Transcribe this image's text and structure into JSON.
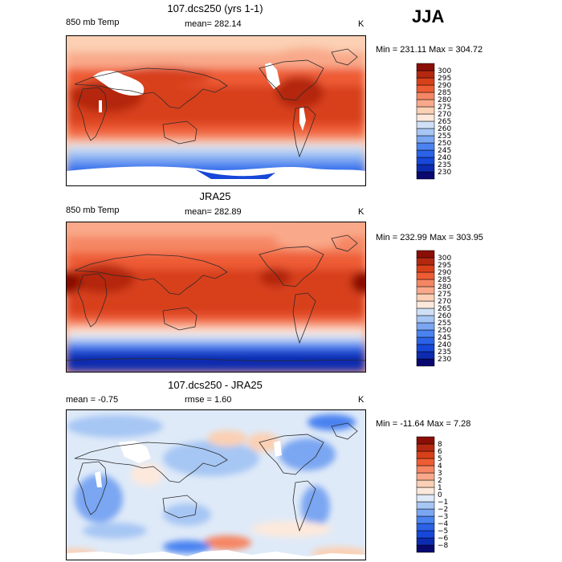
{
  "season": "JJA",
  "chart_data": [
    {
      "type": "heatmap",
      "title": "107.dcs250 (yrs 1-1)",
      "field_label": "850 mb Temp",
      "mean_text": "mean= 282.14",
      "units": "K",
      "range_text": "Min = 231.11 Max = 304.72",
      "min": 231.11,
      "max": 304.72,
      "mean": 282.14,
      "levels": [
        230,
        235,
        240,
        245,
        250,
        255,
        260,
        265,
        270,
        275,
        280,
        285,
        290,
        295,
        300
      ],
      "colors": [
        "#08086e",
        "#0c2bb0",
        "#1647d8",
        "#2a62e8",
        "#4a82f0",
        "#7aa6f2",
        "#a6c6f4",
        "#cfe0f6",
        "#fde9dc",
        "#fbd0b4",
        "#f9a98a",
        "#f58664",
        "#ee5c34",
        "#d8401a",
        "#b42810",
        "#8a0e06"
      ]
    },
    {
      "type": "heatmap",
      "title": "JRA25",
      "field_label": "850 mb Temp",
      "mean_text": "mean= 282.89",
      "units": "K",
      "range_text": "Min = 232.99 Max = 303.95",
      "min": 232.99,
      "max": 303.95,
      "mean": 282.89,
      "levels": [
        230,
        235,
        240,
        245,
        250,
        255,
        260,
        265,
        270,
        275,
        280,
        285,
        290,
        295,
        300
      ],
      "colors": [
        "#08086e",
        "#0c2bb0",
        "#1647d8",
        "#2a62e8",
        "#4a82f0",
        "#7aa6f2",
        "#a6c6f4",
        "#cfe0f6",
        "#fde9dc",
        "#fbd0b4",
        "#f9a98a",
        "#f58664",
        "#ee5c34",
        "#d8401a",
        "#b42810",
        "#8a0e06"
      ]
    },
    {
      "type": "heatmap",
      "title": "107.dcs250 - JRA25",
      "mean_text": "mean =   -0.75",
      "rmse_text": "rmse =    1.60",
      "units": "K",
      "range_text": "Min = -11.64 Max =    7.28",
      "min": -11.64,
      "max": 7.28,
      "mean": -0.75,
      "rmse": 1.6,
      "levels": [
        -8,
        -6,
        -5,
        -4,
        -3,
        -2,
        -1,
        0,
        1,
        2,
        3,
        4,
        5,
        6,
        8
      ],
      "level_labels": [
        "−8",
        "−6",
        "−5",
        "−4",
        "−3",
        "−2",
        "−1",
        "0",
        "1",
        "2",
        "3",
        "4",
        "5",
        "6",
        "8"
      ],
      "colors": [
        "#08086e",
        "#0c2bb0",
        "#1647d8",
        "#2a62e8",
        "#4a82f0",
        "#7aa6f2",
        "#a6c6f4",
        "#dfeaf8",
        "#fde9dc",
        "#fbd0b4",
        "#f9a98a",
        "#f58664",
        "#ee5c34",
        "#d8401a",
        "#b42810",
        "#8a0e06"
      ]
    }
  ]
}
